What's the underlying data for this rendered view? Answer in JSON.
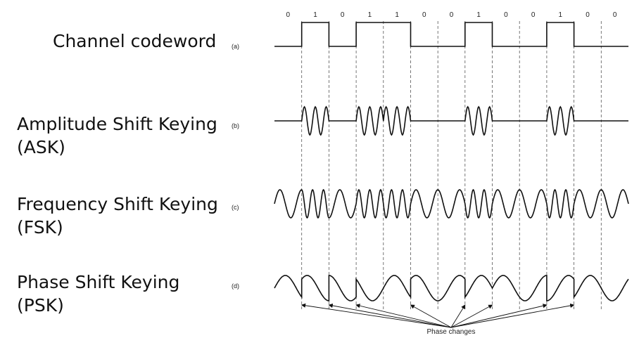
{
  "bits": [
    "0",
    "1",
    "0",
    "1",
    "1",
    "0",
    "0",
    "1",
    "0",
    "0",
    "1",
    "0",
    "0"
  ],
  "rows": [
    {
      "lines": [
        "Channel codeword"
      ],
      "tag": "(a)"
    },
    {
      "lines": [
        "Amplitude Shift Keying",
        "(ASK)"
      ],
      "tag": "(b)"
    },
    {
      "lines": [
        "Frequency Shift Keying",
        "(FSK)"
      ],
      "tag": "(c)"
    },
    {
      "lines": [
        "Phase Shift Keying",
        "(PSK)"
      ],
      "tag": "(d)"
    }
  ],
  "phase_label": "Phase changes",
  "colors": {
    "stroke": "#111111",
    "dashed": "#555555"
  }
}
